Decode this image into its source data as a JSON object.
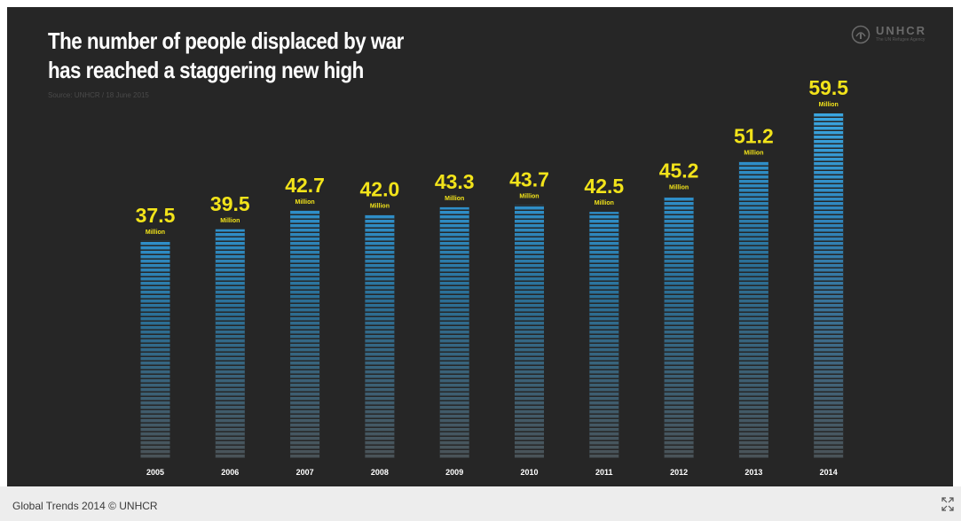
{
  "chart_data": {
    "type": "bar",
    "title_lines": [
      "The number of people displaced by war",
      "has reached a staggering new high"
    ],
    "source": "Source: UNHCR / 18 June 2015",
    "categories": [
      "2005",
      "2006",
      "2007",
      "2008",
      "2009",
      "2010",
      "2011",
      "2012",
      "2013",
      "2014"
    ],
    "values": [
      37.5,
      39.5,
      42.7,
      42.0,
      43.3,
      43.7,
      42.5,
      45.2,
      51.2,
      59.5
    ],
    "value_labels": [
      "37.5",
      "39.5",
      "42.7",
      "42.0",
      "43.3",
      "43.7",
      "42.5",
      "45.2",
      "51.2",
      "59.5"
    ],
    "unit_label": "Million",
    "ylim": [
      0,
      59.5
    ],
    "grid": false,
    "colors": {
      "background": "#262626",
      "bar_top": "#2f8fc9",
      "bar_bottom": "#4a5358",
      "bar_highlight": "#3aa6e0",
      "value_label": "#f2e31a",
      "title": "#ffffff",
      "tick_label": "#ffffff"
    }
  },
  "logo": {
    "name": "UNHCR",
    "tagline": "The UN Refugee Agency"
  },
  "footer": {
    "caption": "Global Trends 2014  © UNHCR"
  },
  "icons": {
    "expand": "expand-icon",
    "logo_mark": "unhcr-emblem-icon"
  }
}
